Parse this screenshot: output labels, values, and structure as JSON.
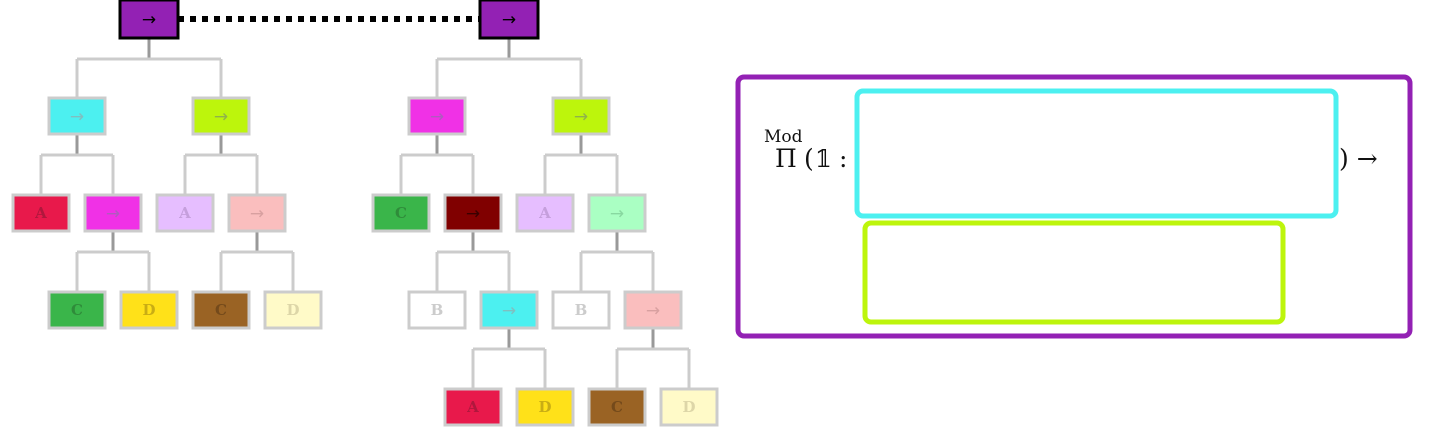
{
  "arrow_glyph": "→",
  "colors": {
    "purple": "#9321B4",
    "cyan": "#4CF0F0",
    "lime": "#BDF50C",
    "magenta": "#F031E6",
    "red": "#E8194B",
    "lavender": "#E6BEFF",
    "pink": "#FABEBE",
    "green": "#3AB54A",
    "yellow": "#FFE119",
    "brown": "#9A6324",
    "cream": "#FFFAC8",
    "maroon": "#800000",
    "mint": "#AAFFC3",
    "white": "#FFFFFF",
    "edge": "#CCCCCC",
    "stem": "#999999"
  },
  "left_tree": {
    "label": "→",
    "color": "purple",
    "children": [
      {
        "label": "→",
        "color": "cyan",
        "children": [
          {
            "label": "A",
            "color": "red"
          },
          {
            "label": "→",
            "color": "magenta",
            "children": [
              {
                "label": "C",
                "color": "green"
              },
              {
                "label": "D",
                "color": "yellow"
              }
            ]
          }
        ]
      },
      {
        "label": "→",
        "color": "lime",
        "children": [
          {
            "label": "A",
            "color": "lavender"
          },
          {
            "label": "→",
            "color": "pink",
            "children": [
              {
                "label": "C",
                "color": "brown"
              },
              {
                "label": "D",
                "color": "cream"
              }
            ]
          }
        ]
      }
    ]
  },
  "right_tree": {
    "label": "→",
    "color": "purple",
    "children": [
      {
        "label": "→",
        "color": "magenta",
        "children": [
          {
            "label": "C",
            "color": "green"
          },
          {
            "label": "→",
            "color": "maroon",
            "children": [
              {
                "label": "B",
                "color": "white"
              },
              {
                "label": "→",
                "color": "cyan",
                "children": [
                  {
                    "label": "A",
                    "color": "red"
                  },
                  {
                    "label": "D",
                    "color": "yellow"
                  }
                ]
              }
            ]
          }
        ]
      },
      {
        "label": "→",
        "color": "lime",
        "children": [
          {
            "label": "A",
            "color": "lavender"
          },
          {
            "label": "→",
            "color": "mint",
            "children": [
              {
                "label": "B",
                "color": "white"
              },
              {
                "label": "→",
                "color": "pink",
                "children": [
                  {
                    "label": "C",
                    "color": "brown"
                  },
                  {
                    "label": "D",
                    "color": "cream"
                  }
                ]
              }
            ]
          }
        ]
      }
    ]
  },
  "formula": {
    "superscript": "Mod",
    "pi": "Π",
    "open": "(",
    "unit": "𝟙",
    "colon": ":",
    "close_arrow": ") →"
  }
}
